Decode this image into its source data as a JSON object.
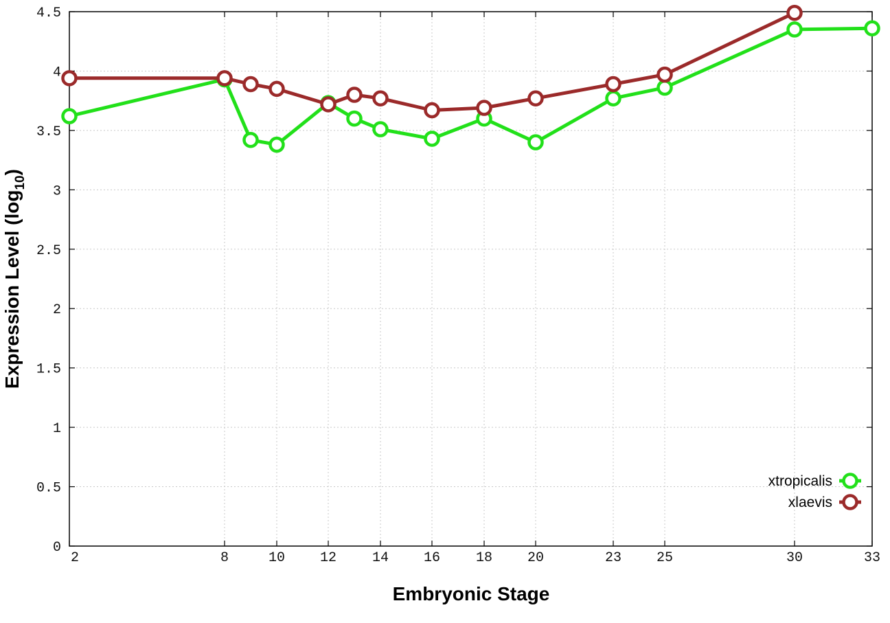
{
  "chart_data": {
    "type": "line",
    "xlabel": "Embryonic Stage",
    "ylabel": "Expression Level (log",
    "ylabel_sub": "10",
    "ylabel_close": ")",
    "x_ticks": [
      2,
      8,
      10,
      12,
      14,
      16,
      18,
      20,
      23,
      25,
      30,
      33
    ],
    "y_ticks": [
      "0",
      "0.5",
      "1",
      "1.5",
      "2",
      "2.5",
      "3",
      "3.5",
      "4",
      "4.5"
    ],
    "ylim": [
      0,
      4.5
    ],
    "xlim": [
      2,
      33
    ],
    "grid": true,
    "legend_position": "bottom-right",
    "series": [
      {
        "name": "xtropicalis",
        "color": "#22e01a",
        "x": [
          2,
          8,
          9,
          10,
          12,
          13,
          14,
          16,
          18,
          20,
          23,
          25,
          30,
          33
        ],
        "y": [
          3.62,
          3.93,
          3.42,
          3.38,
          3.73,
          3.6,
          3.51,
          3.43,
          3.6,
          3.4,
          3.77,
          3.86,
          4.35,
          4.36
        ]
      },
      {
        "name": "xlaevis",
        "color": "#9b2a2a",
        "x": [
          2,
          8,
          9,
          10,
          12,
          13,
          14,
          16,
          18,
          20,
          23,
          25,
          30
        ],
        "y": [
          3.94,
          3.94,
          3.89,
          3.85,
          3.72,
          3.8,
          3.77,
          3.67,
          3.69,
          3.77,
          3.89,
          3.97,
          4.49
        ]
      }
    ]
  }
}
